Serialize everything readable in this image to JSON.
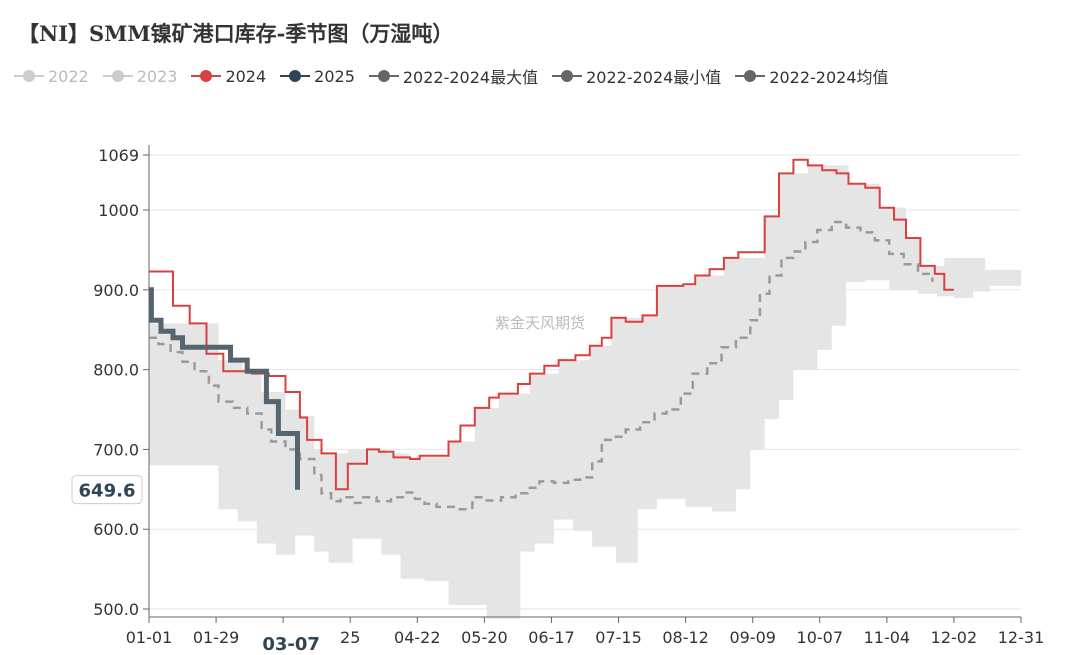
{
  "title": "【NI】SMM镍矿港口库存-季节图（万湿吨）",
  "watermark": "紫金天风期货",
  "pointer": {
    "y_value": "649.6",
    "x_label": "03-07"
  },
  "chart_data": {
    "type": "line",
    "x_range_days": [
      1,
      365
    ],
    "yticks": [
      "1069",
      "1000",
      "900.0",
      "800.0",
      "700.0",
      "600.0",
      "500.0"
    ],
    "ytick_values": [
      1069,
      1000,
      900,
      800,
      700,
      600,
      500
    ],
    "ylim": [
      490,
      1069
    ],
    "xticks": [
      "01-01",
      "01-29",
      "03-07",
      "25",
      "04-22",
      "05-20",
      "06-17",
      "07-15",
      "08-12",
      "09-09",
      "10-07",
      "11-04",
      "12-02",
      "12-31"
    ],
    "xtick_days": [
      1,
      29,
      57,
      85,
      113,
      141,
      169,
      197,
      225,
      253,
      281,
      309,
      337,
      365
    ],
    "legend": [
      {
        "name": "2022",
        "color": "#cccccc",
        "active": false
      },
      {
        "name": "2023",
        "color": "#cccccc",
        "active": false
      },
      {
        "name": "2024",
        "color": "#d94040",
        "active": true
      },
      {
        "name": "2025",
        "color": "#2f4454",
        "active": true
      },
      {
        "name": "2022-2024最大值",
        "color": "#666666",
        "active": true
      },
      {
        "name": "2022-2024最小值",
        "color": "#666666",
        "active": true
      },
      {
        "name": "2022-2024均值",
        "color": "#666666",
        "active": true
      }
    ],
    "series": [
      {
        "name": "2024",
        "color": "#d94040",
        "width": 2,
        "dash": false,
        "points": [
          [
            1,
            923
          ],
          [
            11,
            923
          ],
          [
            11,
            880
          ],
          [
            18,
            880
          ],
          [
            18,
            858
          ],
          [
            25,
            858
          ],
          [
            25,
            820
          ],
          [
            32,
            820
          ],
          [
            32,
            798
          ],
          [
            44,
            798
          ],
          [
            44,
            795
          ],
          [
            51,
            795
          ],
          [
            51,
            792
          ],
          [
            58,
            792
          ],
          [
            58,
            772
          ],
          [
            64,
            772
          ],
          [
            64,
            740
          ],
          [
            67,
            740
          ],
          [
            67,
            712
          ],
          [
            73,
            712
          ],
          [
            73,
            695
          ],
          [
            79,
            695
          ],
          [
            79,
            650
          ],
          [
            84,
            650
          ],
          [
            84,
            682
          ],
          [
            92,
            682
          ],
          [
            92,
            700
          ],
          [
            97,
            700
          ],
          [
            97,
            697
          ],
          [
            103,
            697
          ],
          [
            103,
            690
          ],
          [
            110,
            690
          ],
          [
            110,
            688
          ],
          [
            114,
            688
          ],
          [
            114,
            692
          ],
          [
            126,
            692
          ],
          [
            126,
            710
          ],
          [
            131,
            710
          ],
          [
            131,
            730
          ],
          [
            137,
            730
          ],
          [
            137,
            752
          ],
          [
            143,
            752
          ],
          [
            143,
            765
          ],
          [
            147,
            765
          ],
          [
            147,
            770
          ],
          [
            155,
            770
          ],
          [
            155,
            782
          ],
          [
            160,
            782
          ],
          [
            160,
            795
          ],
          [
            166,
            795
          ],
          [
            166,
            805
          ],
          [
            172,
            805
          ],
          [
            172,
            812
          ],
          [
            179,
            812
          ],
          [
            179,
            818
          ],
          [
            185,
            818
          ],
          [
            185,
            830
          ],
          [
            190,
            830
          ],
          [
            190,
            840
          ],
          [
            194,
            840
          ],
          [
            194,
            865
          ],
          [
            200,
            865
          ],
          [
            200,
            860
          ],
          [
            207,
            860
          ],
          [
            207,
            868
          ],
          [
            213,
            868
          ],
          [
            213,
            905
          ],
          [
            224,
            905
          ],
          [
            224,
            907
          ],
          [
            229,
            907
          ],
          [
            229,
            918
          ],
          [
            235,
            918
          ],
          [
            235,
            926
          ],
          [
            241,
            926
          ],
          [
            241,
            940
          ],
          [
            247,
            940
          ],
          [
            247,
            947
          ],
          [
            258,
            947
          ],
          [
            258,
            992
          ],
          [
            264,
            992
          ],
          [
            264,
            1046
          ],
          [
            270,
            1046
          ],
          [
            270,
            1063
          ],
          [
            276,
            1063
          ],
          [
            276,
            1056
          ],
          [
            282,
            1056
          ],
          [
            282,
            1050
          ],
          [
            288,
            1050
          ],
          [
            288,
            1046
          ],
          [
            293,
            1046
          ],
          [
            293,
            1033
          ],
          [
            300,
            1033
          ],
          [
            300,
            1028
          ],
          [
            306,
            1028
          ],
          [
            306,
            1003
          ],
          [
            312,
            1003
          ],
          [
            312,
            988
          ],
          [
            317,
            988
          ],
          [
            317,
            965
          ],
          [
            323,
            965
          ],
          [
            323,
            930
          ],
          [
            329,
            930
          ],
          [
            329,
            920
          ],
          [
            333,
            920
          ],
          [
            333,
            900
          ],
          [
            337,
            900
          ]
        ]
      },
      {
        "name": "2022-2024均值",
        "color": "#9a9a9a",
        "width": 2.5,
        "dash": true,
        "points": [
          [
            1,
            840
          ],
          [
            5,
            840
          ],
          [
            5,
            832
          ],
          [
            10,
            832
          ],
          [
            10,
            822
          ],
          [
            15,
            822
          ],
          [
            15,
            810
          ],
          [
            20,
            810
          ],
          [
            20,
            798
          ],
          [
            26,
            798
          ],
          [
            26,
            780
          ],
          [
            30,
            780
          ],
          [
            30,
            760
          ],
          [
            36,
            760
          ],
          [
            36,
            752
          ],
          [
            42,
            752
          ],
          [
            42,
            745
          ],
          [
            48,
            745
          ],
          [
            48,
            725
          ],
          [
            52,
            725
          ],
          [
            52,
            710
          ],
          [
            58,
            710
          ],
          [
            58,
            700
          ],
          [
            64,
            700
          ],
          [
            64,
            688
          ],
          [
            70,
            688
          ],
          [
            70,
            668
          ],
          [
            73,
            668
          ],
          [
            73,
            645
          ],
          [
            77,
            645
          ],
          [
            77,
            635
          ],
          [
            81,
            635
          ],
          [
            81,
            640
          ],
          [
            86,
            640
          ],
          [
            86,
            633
          ],
          [
            90,
            633
          ],
          [
            90,
            640
          ],
          [
            96,
            640
          ],
          [
            96,
            635
          ],
          [
            102,
            635
          ],
          [
            102,
            640
          ],
          [
            107,
            640
          ],
          [
            107,
            646
          ],
          [
            112,
            646
          ],
          [
            112,
            638
          ],
          [
            116,
            638
          ],
          [
            116,
            632
          ],
          [
            121,
            632
          ],
          [
            121,
            628
          ],
          [
            129,
            628
          ],
          [
            129,
            625
          ],
          [
            136,
            625
          ],
          [
            136,
            640
          ],
          [
            142,
            640
          ],
          [
            142,
            636
          ],
          [
            148,
            636
          ],
          [
            148,
            640
          ],
          [
            154,
            640
          ],
          [
            154,
            645
          ],
          [
            159,
            645
          ],
          [
            159,
            652
          ],
          [
            164,
            652
          ],
          [
            164,
            660
          ],
          [
            170,
            660
          ],
          [
            170,
            658
          ],
          [
            176,
            658
          ],
          [
            176,
            662
          ],
          [
            181,
            662
          ],
          [
            181,
            665
          ],
          [
            186,
            665
          ],
          [
            186,
            685
          ],
          [
            190,
            685
          ],
          [
            190,
            712
          ],
          [
            195,
            712
          ],
          [
            195,
            716
          ],
          [
            200,
            716
          ],
          [
            200,
            725
          ],
          [
            206,
            725
          ],
          [
            206,
            734
          ],
          [
            212,
            734
          ],
          [
            212,
            745
          ],
          [
            217,
            745
          ],
          [
            217,
            750
          ],
          [
            223,
            750
          ],
          [
            223,
            770
          ],
          [
            228,
            770
          ],
          [
            228,
            795
          ],
          [
            234,
            795
          ],
          [
            234,
            808
          ],
          [
            240,
            808
          ],
          [
            240,
            828
          ],
          [
            246,
            828
          ],
          [
            246,
            840
          ],
          [
            252,
            840
          ],
          [
            252,
            862
          ],
          [
            256,
            862
          ],
          [
            256,
            895
          ],
          [
            260,
            895
          ],
          [
            260,
            918
          ],
          [
            265,
            918
          ],
          [
            265,
            940
          ],
          [
            270,
            940
          ],
          [
            270,
            948
          ],
          [
            275,
            948
          ],
          [
            275,
            960
          ],
          [
            280,
            960
          ],
          [
            280,
            975
          ],
          [
            286,
            975
          ],
          [
            286,
            985
          ],
          [
            292,
            985
          ],
          [
            292,
            978
          ],
          [
            298,
            978
          ],
          [
            298,
            972
          ],
          [
            304,
            972
          ],
          [
            304,
            962
          ],
          [
            310,
            962
          ],
          [
            310,
            945
          ],
          [
            316,
            945
          ],
          [
            316,
            932
          ],
          [
            322,
            932
          ],
          [
            322,
            920
          ],
          [
            328,
            920
          ],
          [
            328,
            910
          ]
        ]
      },
      {
        "name": "2025",
        "color": "#55646f",
        "width": 5,
        "dash": false,
        "points": [
          [
            1,
            900
          ],
          [
            2,
            900
          ],
          [
            2,
            862
          ],
          [
            6,
            862
          ],
          [
            6,
            848
          ],
          [
            11,
            848
          ],
          [
            11,
            840
          ],
          [
            15,
            840
          ],
          [
            15,
            828
          ],
          [
            35,
            828
          ],
          [
            35,
            812
          ],
          [
            42,
            812
          ],
          [
            42,
            798
          ],
          [
            50,
            798
          ],
          [
            50,
            760
          ],
          [
            55,
            760
          ],
          [
            55,
            720
          ],
          [
            63,
            720
          ],
          [
            63,
            649.6
          ]
        ]
      }
    ]
  }
}
